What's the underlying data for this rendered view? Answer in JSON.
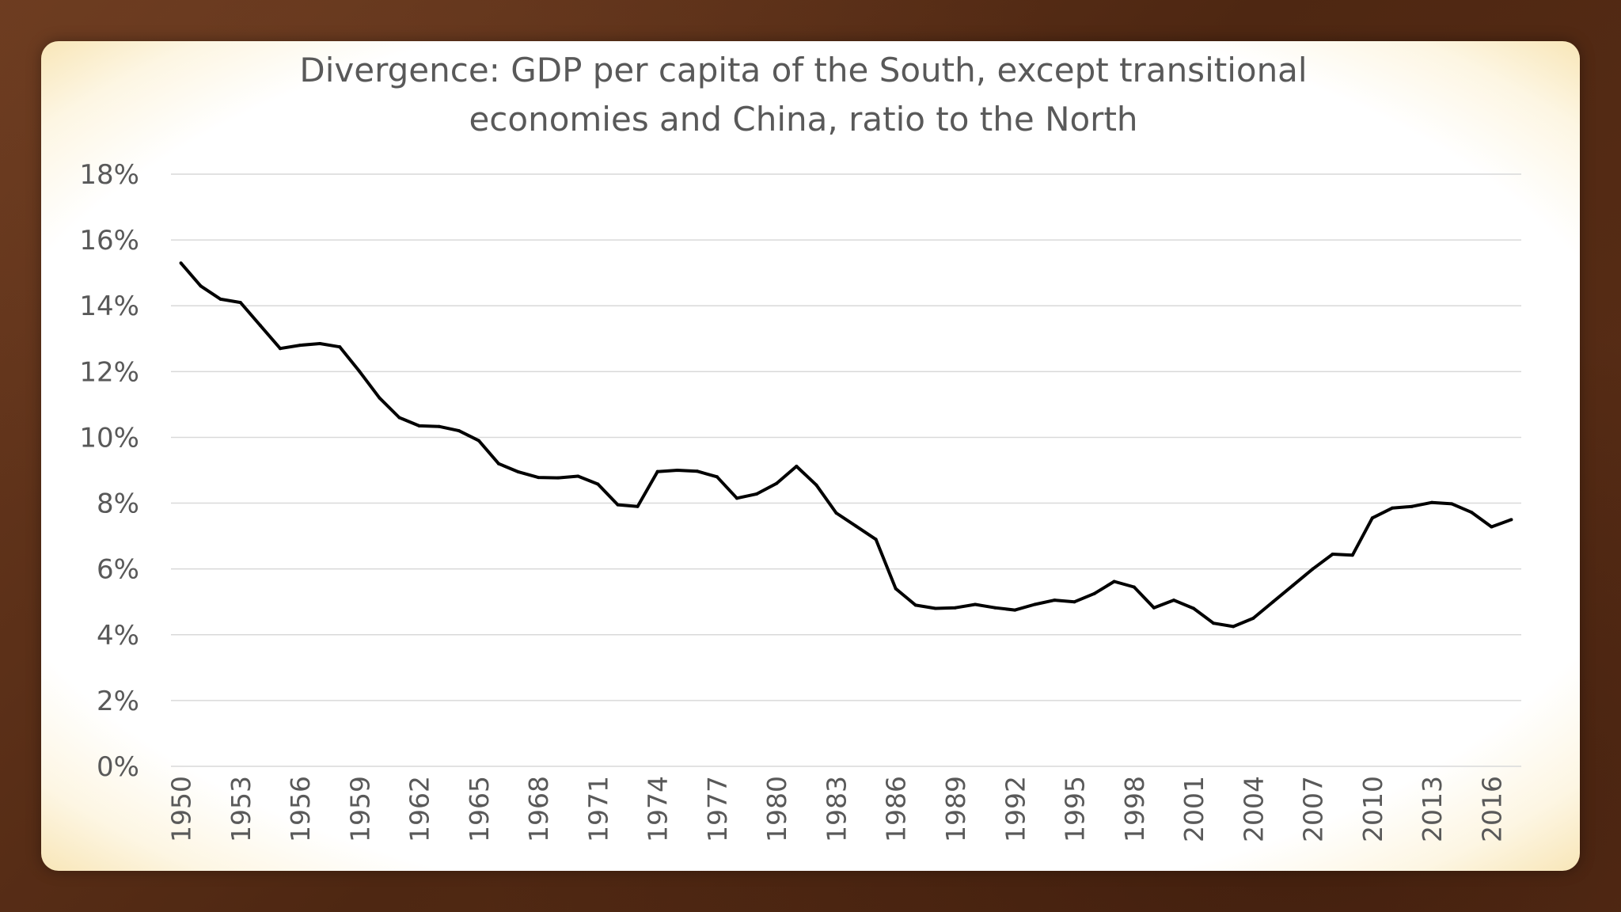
{
  "chart_data": {
    "type": "line",
    "title": "Divergence: GDP per capita of the South, except transitional\neconomies and China, ratio to the North",
    "xlabel": "",
    "ylabel": "",
    "ylim": [
      0,
      18
    ],
    "y_ticks": [
      "0%",
      "2%",
      "4%",
      "6%",
      "8%",
      "10%",
      "12%",
      "14%",
      "16%",
      "18%"
    ],
    "x_tick_labels": [
      "1950",
      "1953",
      "1956",
      "1959",
      "1962",
      "1965",
      "1968",
      "1971",
      "1974",
      "1977",
      "1980",
      "1983",
      "1986",
      "1989",
      "1992",
      "1995",
      "1998",
      "2001",
      "2004",
      "2007",
      "2010",
      "2013",
      "2016"
    ],
    "grid": true,
    "legend": "none",
    "line_color": "#000000",
    "x": [
      1950,
      1951,
      1952,
      1953,
      1954,
      1955,
      1956,
      1957,
      1958,
      1959,
      1960,
      1961,
      1962,
      1963,
      1964,
      1965,
      1966,
      1967,
      1968,
      1969,
      1970,
      1971,
      1972,
      1973,
      1974,
      1975,
      1976,
      1977,
      1978,
      1979,
      1980,
      1981,
      1982,
      1983,
      1984,
      1985,
      1986,
      1987,
      1988,
      1989,
      1990,
      1991,
      1992,
      1993,
      1994,
      1995,
      1996,
      1997,
      1998,
      1999,
      2000,
      2001,
      2002,
      2003,
      2004,
      2005,
      2006,
      2007,
      2008,
      2009,
      2010,
      2011,
      2012,
      2013,
      2014,
      2015,
      2016,
      2017
    ],
    "series": [
      {
        "values": [
          15.3,
          14.6,
          14.2,
          14.1,
          13.4,
          12.7,
          12.8,
          12.85,
          12.75,
          12.0,
          11.2,
          10.6,
          10.35,
          10.33,
          10.2,
          9.9,
          9.2,
          8.95,
          8.78,
          8.77,
          8.82,
          8.58,
          7.95,
          7.9,
          8.96,
          9.0,
          8.97,
          8.8,
          8.15,
          8.28,
          8.6,
          9.12,
          8.55,
          7.7,
          7.3,
          6.9,
          5.4,
          4.9,
          4.8,
          4.82,
          4.92,
          4.82,
          4.75,
          4.92,
          5.05,
          5.0,
          5.25,
          5.62,
          5.45,
          4.82,
          5.05,
          4.8,
          4.35,
          4.25,
          4.5,
          5.0,
          5.5,
          6.0,
          6.45,
          6.42,
          7.55,
          7.85,
          7.9,
          8.02,
          7.98,
          7.72,
          7.28,
          7.5
        ]
      }
    ]
  }
}
